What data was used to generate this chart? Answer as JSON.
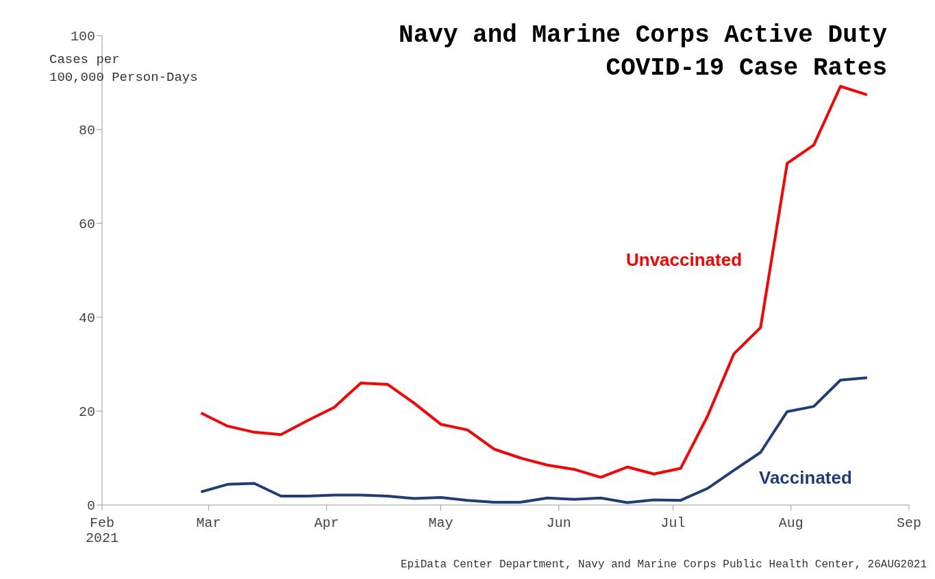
{
  "chart_data": {
    "type": "line",
    "title": "Navy and Marine Corps Active Duty\nCOVID-19 Case Rates",
    "ylabel": "Cases per\n100,000 Person-Days",
    "x": [
      "2021-02-27",
      "2021-03-06",
      "2021-03-13",
      "2021-03-20",
      "2021-03-27",
      "2021-04-03",
      "2021-04-10",
      "2021-04-17",
      "2021-04-24",
      "2021-05-01",
      "2021-05-08",
      "2021-05-15",
      "2021-05-22",
      "2021-05-29",
      "2021-06-05",
      "2021-06-12",
      "2021-06-19",
      "2021-06-26",
      "2021-07-03",
      "2021-07-10",
      "2021-07-17",
      "2021-07-24",
      "2021-07-31",
      "2021-08-07",
      "2021-08-14",
      "2021-08-21"
    ],
    "series": [
      {
        "name": "Unvaccinated",
        "color": "#ff0000",
        "values": [
          19.6,
          16.8,
          15.5,
          15,
          18,
          20.8,
          26,
          25.7,
          21.7,
          17.2,
          16,
          11.9,
          10,
          8.5,
          7.6,
          5.9,
          8.1,
          6.6,
          7.8,
          18.8,
          32.2,
          37.8,
          72.8,
          76.7,
          89.2,
          87.4
        ]
      },
      {
        "name": "Vaccinated",
        "color": "#1f3d7a",
        "values": [
          2.8,
          4.4,
          4.6,
          1.9,
          1.9,
          2.1,
          2.1,
          1.9,
          1.4,
          1.6,
          1.0,
          0.6,
          0.6,
          1.5,
          1.2,
          1.5,
          0.5,
          1.1,
          1.0,
          3.5,
          7.4,
          11.2,
          19.9,
          21.0,
          26.6,
          27.1
        ]
      }
    ],
    "xlim": [
      "2021-02-01",
      "2021-09-01"
    ],
    "xticks": [
      {
        "value": "2021-02-01",
        "label": "Feb\n2021"
      },
      {
        "value": "2021-03-01",
        "label": "Mar"
      },
      {
        "value": "2021-04-01",
        "label": "Apr"
      },
      {
        "value": "2021-05-01",
        "label": "May"
      },
      {
        "value": "2021-06-01",
        "label": "Jun"
      },
      {
        "value": "2021-07-01",
        "label": "Jul"
      },
      {
        "value": "2021-08-01",
        "label": "Aug"
      },
      {
        "value": "2021-09-01",
        "label": "Sep"
      }
    ],
    "ylim": [
      0,
      100
    ],
    "yticks": [
      0,
      20,
      40,
      60,
      80,
      100
    ],
    "grid": false,
    "legend": false,
    "marker": "none",
    "line_style": "solid",
    "annotations": [
      "EpiData Center Department, Navy and Marine Corps Public Health Center, 26AUG2021"
    ]
  }
}
